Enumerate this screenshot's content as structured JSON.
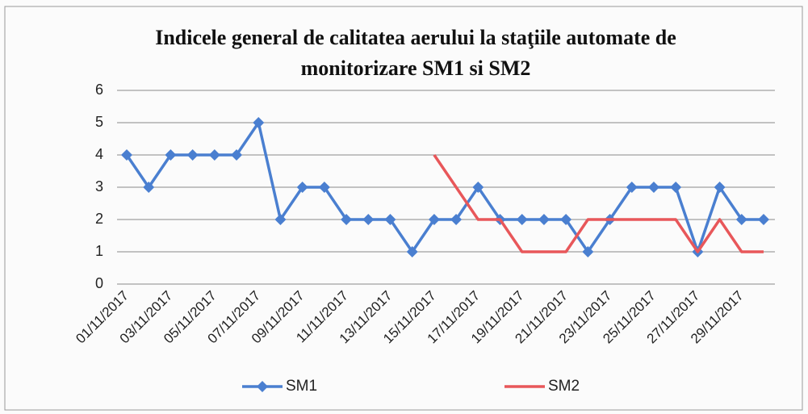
{
  "chart_data": {
    "type": "line",
    "title": "Indicele general de calitatea aerului la staţiile automate de monitorizare SM1 si SM2",
    "categories": [
      "01/11/2017",
      null,
      "03/11/2017",
      null,
      "05/11/2017",
      null,
      "07/11/2017",
      null,
      "09/11/2017",
      null,
      "11/11/2017",
      null,
      "13/11/2017",
      null,
      "15/11/2017",
      null,
      "17/11/2017",
      null,
      "19/11/2017",
      null,
      "21/11/2017",
      null,
      "23/11/2017",
      null,
      "25/11/2017",
      null,
      "27/11/2017",
      null,
      "29/11/2017",
      null
    ],
    "series": [
      {
        "name": "SM1",
        "color": "#4a7fd0",
        "marker": "diamond",
        "values": [
          4,
          3,
          4,
          4,
          4,
          4,
          5,
          2,
          3,
          3,
          2,
          2,
          2,
          1,
          2,
          2,
          3,
          2,
          2,
          2,
          2,
          1,
          2,
          3,
          3,
          3,
          1,
          3,
          2,
          2
        ]
      },
      {
        "name": "SM2",
        "color": "#e8575a",
        "marker": "none",
        "values": [
          null,
          null,
          null,
          null,
          null,
          null,
          null,
          null,
          null,
          null,
          null,
          null,
          null,
          null,
          4,
          3,
          2,
          2,
          1,
          1,
          1,
          2,
          2,
          2,
          2,
          2,
          1,
          2,
          1,
          1
        ]
      }
    ],
    "ylim": [
      0,
      6
    ],
    "yticks": [
      0,
      1,
      2,
      3,
      4,
      5,
      6
    ],
    "grid": true,
    "legend": "bottom"
  }
}
